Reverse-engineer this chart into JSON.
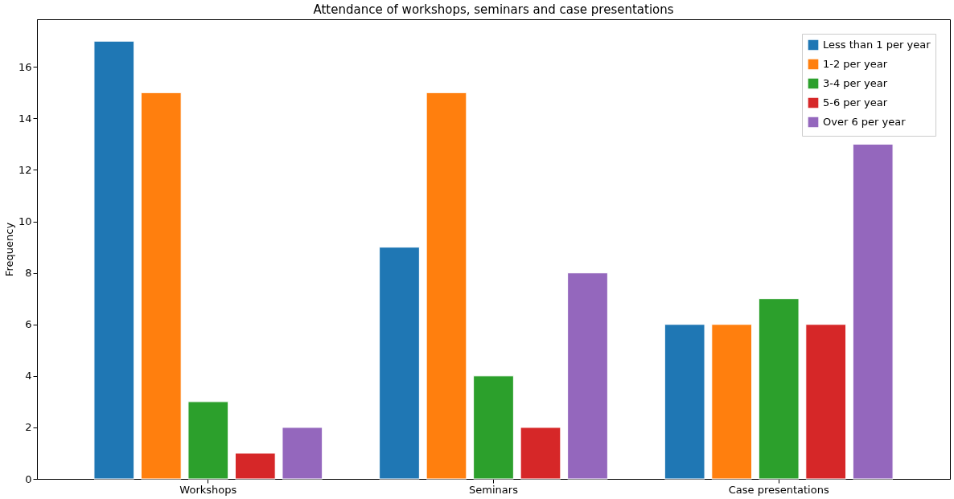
{
  "chart_data": {
    "type": "bar",
    "title": "Attendance of workshops, seminars and case presentations",
    "ylabel": "Frequency",
    "categories": [
      "Workshops",
      "Seminars",
      "Case presentations"
    ],
    "series": [
      {
        "name": "Less than 1 per year",
        "color": "#1f77b4",
        "values": [
          17,
          9,
          6
        ]
      },
      {
        "name": "1-2 per year",
        "color": "#ff7f0e",
        "values": [
          15,
          15,
          6
        ]
      },
      {
        "name": "3-4 per year",
        "color": "#2ca02c",
        "values": [
          3,
          4,
          7
        ]
      },
      {
        "name": "5-6 per year",
        "color": "#d62728",
        "values": [
          1,
          2,
          6
        ]
      },
      {
        "name": "Over 6 per year",
        "color": "#9467bd",
        "values": [
          2,
          8,
          13
        ]
      }
    ],
    "ylim": [
      0,
      17.85
    ],
    "yticks": [
      0,
      2,
      4,
      6,
      8,
      10,
      12,
      14,
      16
    ],
    "grid": false,
    "legend": "top right"
  }
}
